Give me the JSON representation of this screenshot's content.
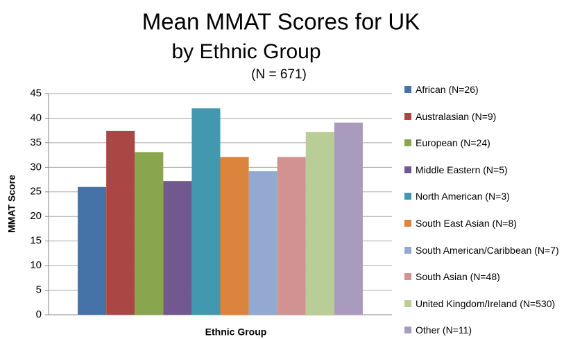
{
  "chart_data": {
    "type": "bar",
    "title": [
      "Mean MMAT Scores for UK",
      "by Ethnic Group"
    ],
    "subtitle": "(N = 671)",
    "x_label": "Ethnic Group",
    "y_label": "MMAT Score",
    "categories": [
      null
    ],
    "series": [
      {
        "name": "African (N=26)",
        "color": "#4572a7",
        "values": [
          26
        ]
      },
      {
        "name": "Australasian (N=9)",
        "color": "#aa4643",
        "values": [
          37.4
        ]
      },
      {
        "name": "European (N=24)",
        "color": "#89a54e",
        "values": [
          33.1
        ]
      },
      {
        "name": "Middle Eastern (N=5)",
        "color": "#71588f",
        "values": [
          27.2
        ]
      },
      {
        "name": "North American (N=3)",
        "color": "#4198af",
        "values": [
          42
        ]
      },
      {
        "name": "South East Asian (N=8)",
        "color": "#db843d",
        "values": [
          32.1
        ]
      },
      {
        "name": "South American/Caribbean (N=7)",
        "color": "#93a9cf",
        "values": [
          29.2
        ]
      },
      {
        "name": "South Asian (N=48)",
        "color": "#d19392",
        "values": [
          32.1
        ]
      },
      {
        "name": "United Kingdom/Ireland (N=530)",
        "color": "#b9cd96",
        "values": [
          37.2
        ]
      },
      {
        "name": "Other (N=11)",
        "color": "#a99bbd",
        "values": [
          39.1
        ]
      }
    ],
    "ylim": [
      0,
      45
    ],
    "yticks": [
      0,
      5,
      10,
      15,
      20,
      25,
      30,
      35,
      40,
      45
    ],
    "grid": true,
    "legend": "right"
  }
}
